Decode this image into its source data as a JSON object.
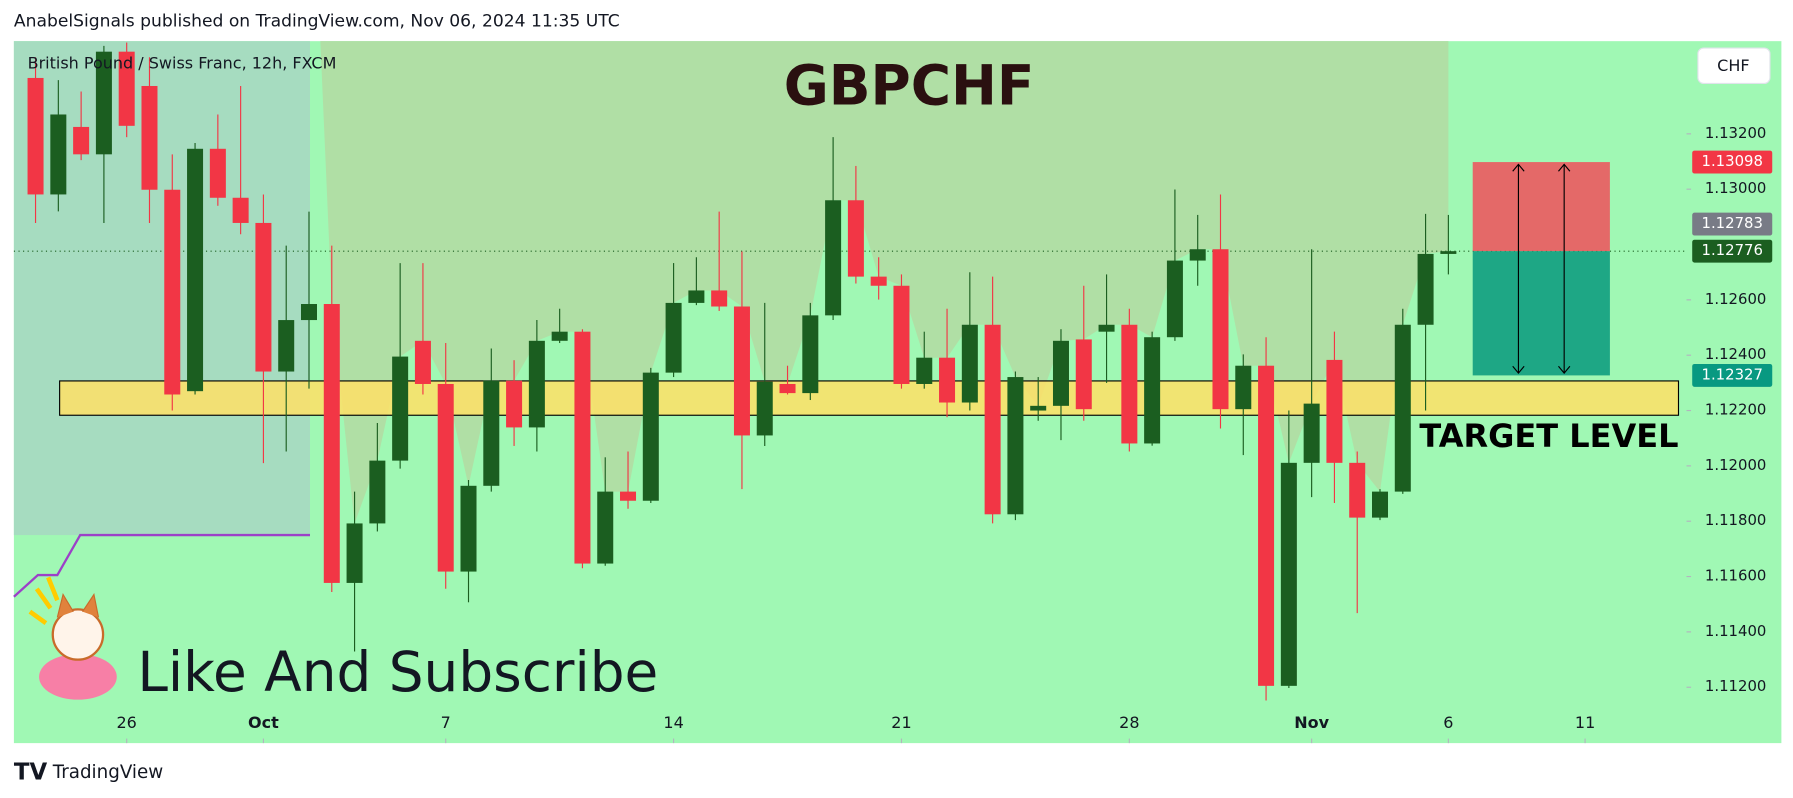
{
  "chart_data": {
    "type": "candlestick",
    "header": "AnabelSignals published on TradingView.com, Nov 06, 2024 11:35 UTC",
    "symbol_label": "British Pound / Swiss Franc, 12h, FXCM",
    "title": "GBPCHF",
    "zone_label": "TARGET LEVEL",
    "caption": "Like And Subscribe",
    "currency": "CHF",
    "brand": "TradingView",
    "up_color": "#1b5e20",
    "down_color": "#f23645",
    "open": [
      1.13402,
      1.12981,
      1.13225,
      1.13126,
      1.13497,
      1.13373,
      1.12998,
      1.1227,
      1.13146,
      1.12969,
      1.12878,
      1.12341,
      1.12527,
      1.12585,
      1.11577,
      1.11792,
      1.12019,
      1.12452,
      1.12296,
      1.11618,
      1.11928,
      1.12308,
      1.12139,
      1.12452,
      1.12485,
      1.11647,
      1.11907,
      1.11874,
      1.12337,
      1.12589,
      1.12634,
      1.12576,
      1.1211,
      1.12296,
      1.12263,
      1.12544,
      1.1296,
      1.12684,
      1.12651,
      1.12296,
      1.12391,
      1.12229,
      1.1251,
      1.11825,
      1.122,
      1.12217,
      1.12457,
      1.12485,
      1.1251,
      1.12081,
      1.12465,
      1.12742,
      1.12783,
      1.12205,
      1.12362,
      1.11205,
      1.12011,
      1.12383,
      1.12011,
      1.11813,
      1.11907,
      1.1251,
      1.12766
    ],
    "high": [
      1.13477,
      1.13394,
      1.13353,
      1.13518,
      1.1353,
      1.13477,
      1.13126,
      1.13167,
      1.1327,
      1.13373,
      1.12981,
      1.12796,
      1.12919,
      1.12796,
      1.11907,
      1.12155,
      1.12733,
      1.12733,
      1.12444,
      1.11949,
      1.12424,
      1.12382,
      1.12527,
      1.12568,
      1.12494,
      1.12031,
      1.12052,
      1.12354,
      1.12733,
      1.12754,
      1.12919,
      1.12775,
      1.12589,
      1.12362,
      1.12589,
      1.13188,
      1.13084,
      1.12754,
      1.12692,
      1.12485,
      1.12568,
      1.127,
      1.12684,
      1.12341,
      1.12321,
      1.12494,
      1.12651,
      1.12692,
      1.12568,
      1.12485,
      1.12999,
      1.12907,
      1.12981,
      1.12403,
      1.12465,
      1.122,
      1.12783,
      1.12485,
      1.12052,
      1.11916,
      1.12568,
      1.12911,
      1.12907
    ],
    "low": [
      1.12878,
      1.1292,
      1.13105,
      1.12878,
      1.13188,
      1.12878,
      1.122,
      1.12258,
      1.1294,
      1.12837,
      1.1201,
      1.12052,
      1.12279,
      1.11544,
      1.11329,
      1.11763,
      1.1199,
      1.12258,
      1.11556,
      1.11507,
      1.11907,
      1.12072,
      1.12052,
      1.12444,
      1.1163,
      1.11639,
      1.11845,
      1.11866,
      1.12321,
      1.12581,
      1.1256,
      1.11916,
      1.12072,
      1.12258,
      1.12238,
      1.12527,
      1.12659,
      1.12601,
      1.12279,
      1.12279,
      1.12176,
      1.122,
      1.11792,
      1.11804,
      1.12163,
      1.12093,
      1.12163,
      1.123,
      1.12052,
      1.12073,
      1.12452,
      1.12651,
      1.12135,
      1.12039,
      1.11152,
      1.11197,
      1.11887,
      1.11866,
      1.11468,
      1.11804,
      1.11899,
      1.122,
      1.12692
    ],
    "close": [
      1.12981,
      1.1327,
      1.13126,
      1.13497,
      1.13229,
      1.12998,
      1.12258,
      1.13146,
      1.12969,
      1.12878,
      1.12341,
      1.12527,
      1.12585,
      1.11577,
      1.11792,
      1.12019,
      1.12395,
      1.12296,
      1.11618,
      1.11928,
      1.12308,
      1.12139,
      1.12452,
      1.12485,
      1.11647,
      1.11907,
      1.11874,
      1.12337,
      1.12589,
      1.12634,
      1.12576,
      1.1211,
      1.12304,
      1.12263,
      1.12544,
      1.1296,
      1.12684,
      1.12651,
      1.12296,
      1.12391,
      1.12229,
      1.1251,
      1.11825,
      1.12321,
      1.12217,
      1.12452,
      1.12205,
      1.1251,
      1.12081,
      1.12465,
      1.12742,
      1.12783,
      1.12205,
      1.12362,
      1.11205,
      1.12011,
      1.12225,
      1.12011,
      1.11813,
      1.11907,
      1.1251,
      1.12766,
      1.12776
    ],
    "xlim": [
      -0.95,
      72.45
    ],
    "xticks": [
      {
        "value": 4,
        "label": "26"
      },
      {
        "value": 10,
        "label": "Oct"
      },
      {
        "value": 18,
        "label": "7"
      },
      {
        "value": 28,
        "label": "14"
      },
      {
        "value": 38,
        "label": "21"
      },
      {
        "value": 48,
        "label": "28"
      },
      {
        "value": 56,
        "label": "Nov"
      },
      {
        "value": 62,
        "label": "6"
      },
      {
        "value": 68,
        "label": "11"
      }
    ],
    "ylim": [
      1.10998,
      1.13535
    ],
    "yticks": [
      {
        "value": 1.132,
        "label": "1.13200"
      },
      {
        "value": 1.13,
        "label": "1.13000"
      },
      {
        "value": 1.126,
        "label": "1.12600"
      },
      {
        "value": 1.124,
        "label": "1.12400"
      },
      {
        "value": 1.122,
        "label": "1.12200"
      },
      {
        "value": 1.12,
        "label": "1.12000"
      },
      {
        "value": 1.118,
        "label": "1.11800"
      },
      {
        "value": 1.116,
        "label": "1.11600"
      },
      {
        "value": 1.114,
        "label": "1.11400"
      },
      {
        "value": 1.112,
        "label": "1.11200"
      }
    ],
    "price_labels": [
      {
        "value": 1.13098,
        "color": "#f23645"
      },
      {
        "value": 1.12783,
        "color": "#787b86"
      },
      {
        "value": 1.12776,
        "color": "#1b5e20"
      },
      {
        "value": 1.12327,
        "color": "#089981"
      }
    ],
    "support_zone": [
      1.12183,
      1.12307
    ]
  }
}
